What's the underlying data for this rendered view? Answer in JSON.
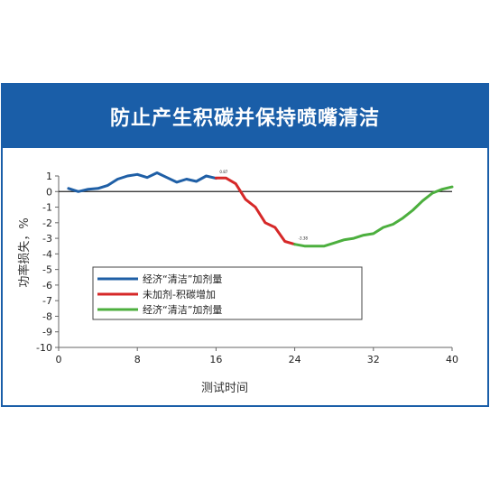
{
  "banner": {
    "title": "防止产生积碳并保持喷嘴清洁"
  },
  "colors": {
    "banner": "#1a5ea8",
    "blue": "#1f5fa6",
    "red": "#d62828",
    "green": "#4caf3e"
  },
  "chart_data": {
    "type": "line",
    "title": "",
    "xlabel": "测试时间",
    "ylabel": "功率损失，%",
    "xlim": [
      0,
      40
    ],
    "ylim": [
      -10,
      1
    ],
    "xticks": [
      0,
      8,
      16,
      24,
      32,
      40
    ],
    "yticks": [
      1,
      0,
      -1,
      -2,
      -3,
      -4,
      -5,
      -6,
      -7,
      -8,
      -9,
      -10
    ],
    "grid": false,
    "legend_position": "center-left",
    "annotations": [
      {
        "x": 16,
        "y": 0.87,
        "text": "0.87"
      },
      {
        "x": 24,
        "y": -3.38,
        "text": "-3.38"
      }
    ],
    "series": [
      {
        "name": "经济“清洁”加剂量",
        "color": "#1f5fa6",
        "x": [
          1,
          2,
          3,
          4,
          5,
          6,
          7,
          8,
          9,
          10,
          11,
          12,
          13,
          14,
          15,
          16
        ],
        "y": [
          0.2,
          0.0,
          0.15,
          0.2,
          0.4,
          0.8,
          1.0,
          1.1,
          0.9,
          1.2,
          0.9,
          0.6,
          0.8,
          0.65,
          1.0,
          0.85
        ]
      },
      {
        "name": "未加剂-积碳增加",
        "color": "#d62828",
        "x": [
          16,
          17,
          18,
          19,
          20,
          21,
          22,
          23,
          24
        ],
        "y": [
          0.87,
          0.87,
          0.5,
          -0.5,
          -1.0,
          -2.0,
          -2.3,
          -3.2,
          -3.38
        ]
      },
      {
        "name": "经济“清洁”加剂量",
        "color": "#4caf3e",
        "x": [
          24,
          25,
          26,
          27,
          28,
          29,
          30,
          31,
          32,
          33,
          34,
          35,
          36,
          37,
          38,
          39,
          40
        ],
        "y": [
          -3.38,
          -3.5,
          -3.5,
          -3.5,
          -3.3,
          -3.1,
          -3.0,
          -2.8,
          -2.7,
          -2.3,
          -2.1,
          -1.7,
          -1.2,
          -0.6,
          -0.1,
          0.15,
          0.3
        ]
      }
    ]
  }
}
